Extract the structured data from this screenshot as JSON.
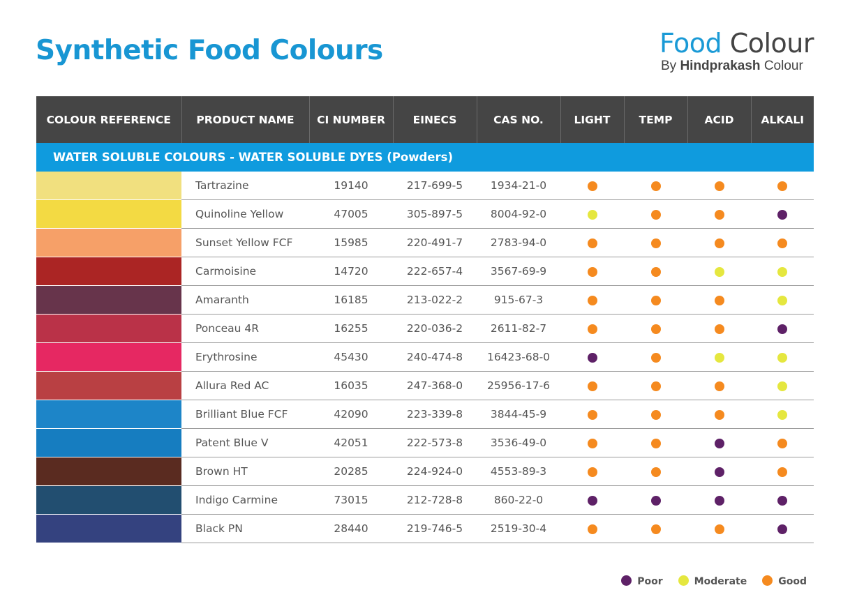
{
  "title": "Synthetic Food Colours",
  "brand": {
    "food": "Food",
    "colour": "Colour",
    "by": "By",
    "company": "Hindprakash",
    "company_suffix": "Colour"
  },
  "rating_colors": {
    "Poor": "#5e2167",
    "Moderate": "#e5e73f",
    "Good": "#f58a1f"
  },
  "table": {
    "headers": [
      "COLOUR REFERENCE",
      "PRODUCT NAME",
      "CI NUMBER",
      "EINECS",
      "CAS NO.",
      "LIGHT",
      "TEMP",
      "ACID",
      "ALKALI"
    ],
    "section": "WATER SOLUBLE COLOURS - WATER SOLUBLE DYES (Powders)",
    "rows": [
      {
        "swatch": "#f1e07f",
        "name": "Tartrazine",
        "ci": "19140",
        "einecs": "217-699-5",
        "cas": "1934-21-0",
        "light": "Good",
        "temp": "Good",
        "acid": "Good",
        "alkali": "Good"
      },
      {
        "swatch": "#f3da43",
        "name": "Quinoline Yellow",
        "ci": "47005",
        "einecs": "305-897-5",
        "cas": "8004-92-0",
        "light": "Moderate",
        "temp": "Good",
        "acid": "Good",
        "alkali": "Poor"
      },
      {
        "swatch": "#f6a068",
        "name": "Sunset Yellow FCF",
        "ci": "15985",
        "einecs": "220-491-7",
        "cas": "2783-94-0",
        "light": "Good",
        "temp": "Good",
        "acid": "Good",
        "alkali": "Good"
      },
      {
        "swatch": "#ab2524",
        "name": "Carmoisine",
        "ci": "14720",
        "einecs": "222-657-4",
        "cas": "3567-69-9",
        "light": "Good",
        "temp": "Good",
        "acid": "Moderate",
        "alkali": "Moderate"
      },
      {
        "swatch": "#67344b",
        "name": "Amaranth",
        "ci": "16185",
        "einecs": "213-022-2",
        "cas": "915-67-3",
        "light": "Good",
        "temp": "Good",
        "acid": "Good",
        "alkali": "Moderate"
      },
      {
        "swatch": "#ba3248",
        "name": "Ponceau 4R",
        "ci": "16255",
        "einecs": "220-036-2",
        "cas": "2611-82-7",
        "light": "Good",
        "temp": "Good",
        "acid": "Good",
        "alkali": "Poor"
      },
      {
        "swatch": "#e62862",
        "name": "Erythrosine",
        "ci": "45430",
        "einecs": "240-474-8",
        "cas": "16423-68-0",
        "light": "Poor",
        "temp": "Good",
        "acid": "Moderate",
        "alkali": "Moderate"
      },
      {
        "swatch": "#b94043",
        "name": "Allura Red AC",
        "ci": "16035",
        "einecs": "247-368-0",
        "cas": "25956-17-6",
        "light": "Good",
        "temp": "Good",
        "acid": "Good",
        "alkali": "Moderate"
      },
      {
        "swatch": "#1d85c8",
        "name": "Brilliant Blue FCF",
        "ci": "42090",
        "einecs": "223-339-8",
        "cas": "3844-45-9",
        "light": "Good",
        "temp": "Good",
        "acid": "Good",
        "alkali": "Moderate"
      },
      {
        "swatch": "#167dc0",
        "name": "Patent Blue V",
        "ci": "42051",
        "einecs": "222-573-8",
        "cas": "3536-49-0",
        "light": "Good",
        "temp": "Good",
        "acid": "Poor",
        "alkali": "Good"
      },
      {
        "swatch": "#5a2b20",
        "name": "Brown HT",
        "ci": "20285",
        "einecs": "224-924-0",
        "cas": "4553-89-3",
        "light": "Good",
        "temp": "Good",
        "acid": "Poor",
        "alkali": "Good"
      },
      {
        "swatch": "#224e70",
        "name": "Indigo Carmine",
        "ci": "73015",
        "einecs": "212-728-8",
        "cas": "860-22-0",
        "light": "Poor",
        "temp": "Poor",
        "acid": "Poor",
        "alkali": "Poor"
      },
      {
        "swatch": "#34427f",
        "name": "Black PN",
        "ci": "28440",
        "einecs": "219-746-5",
        "cas": "2519-30-4",
        "light": "Good",
        "temp": "Good",
        "acid": "Good",
        "alkali": "Poor"
      }
    ]
  },
  "legend": [
    {
      "label": "Poor",
      "color": "#5e2167"
    },
    {
      "label": "Moderate",
      "color": "#e5e73f"
    },
    {
      "label": "Good",
      "color": "#f58a1f"
    }
  ]
}
